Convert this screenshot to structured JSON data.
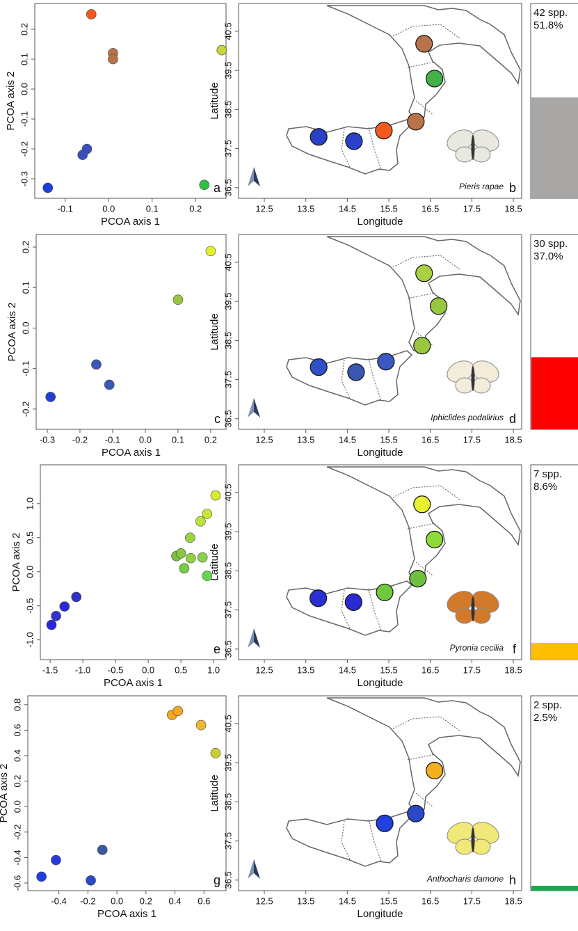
{
  "chart_data": [
    {
      "type": "scatter",
      "label": "a",
      "xlabel": "PCOA axis 1",
      "ylabel": "PCOA axis 2",
      "x": [
        -0.04,
        0.01,
        0.01,
        0.26,
        -0.05,
        -0.06,
        -0.14,
        0.22
      ],
      "y": [
        0.25,
        0.12,
        0.1,
        0.13,
        -0.2,
        -0.22,
        -0.33,
        -0.32
      ],
      "colors": [
        "#f05a1e",
        "#b8734a",
        "#b8734a",
        "#c8d43a",
        "#3a4fc0",
        "#3a4fc0",
        "#1a3fd8",
        "#2ec040"
      ],
      "xlim": [
        -0.17,
        0.27
      ],
      "ylim": [
        -0.365,
        0.286
      ],
      "xticks": [
        -0.1,
        {
          "value": 0,
          "label": "0.0"
        },
        0.1,
        0.2
      ],
      "yticks": [
        -0.3,
        -0.2,
        -0.1,
        {
          "value": 0,
          "label": "0.0"
        },
        0.1,
        0.2
      ]
    },
    {
      "type": "map",
      "label": "b",
      "species": "Pieris rapae",
      "xlabel": "Longitude",
      "ylabel": "Latitude",
      "x": [
        16.35,
        16.6,
        16.15,
        15.38,
        14.66,
        13.81
      ],
      "y": [
        40.18,
        39.29,
        38.19,
        37.96,
        37.69,
        37.8
      ],
      "colors": [
        "#b8734a",
        "#44b048",
        "#b8734a",
        "#f05a1e",
        "#2a40c8",
        "#2a40c8"
      ],
      "xlim": [
        11.88,
        18.7
      ],
      "ylim": [
        36.23,
        41.21
      ],
      "xticks": [
        12.5,
        13.5,
        14.5,
        15.5,
        16.5,
        17.5,
        18.5
      ],
      "yticks": [
        36.5,
        37.5,
        38.5,
        39.5,
        40.5
      ]
    },
    {
      "type": "bar",
      "label": "42 spp.",
      "values": [
        51.8
      ],
      "value_labels": [
        "51.8%"
      ],
      "color": "#a9a6a6",
      "ylim": [
        0,
        100
      ]
    },
    {
      "type": "scatter",
      "label": "c",
      "xlabel": "PCOA axis 1",
      "ylabel": "PCOA axis 2",
      "x": [
        0.2,
        0.1,
        -0.15,
        -0.11,
        -0.29
      ],
      "y": [
        0.19,
        0.07,
        -0.09,
        -0.14,
        -0.17
      ],
      "colors": [
        "#e6ef2a",
        "#9cc43c",
        "#3a58b4",
        "#3a58b4",
        "#2040d0"
      ],
      "xlim": [
        -0.334,
        0.247
      ],
      "ylim": [
        -0.25,
        0.231
      ],
      "xticks": [
        -0.3,
        -0.2,
        -0.1,
        {
          "value": 0,
          "label": "0.0"
        },
        0.1,
        0.2
      ],
      "yticks": [
        -0.2,
        -0.1,
        {
          "value": 0,
          "label": "0.0"
        },
        0.1,
        0.2
      ]
    },
    {
      "type": "map",
      "label": "d",
      "species": "Iphiclides podalirius",
      "xlabel": "Longitude",
      "ylabel": "Latitude",
      "x": [
        16.35,
        16.7,
        16.3,
        15.43,
        14.71,
        13.81
      ],
      "y": [
        40.22,
        39.38,
        38.37,
        37.96,
        37.69,
        37.82
      ],
      "colors": [
        "#a8d040",
        "#98c840",
        "#98c840",
        "#3a58c0",
        "#3a58b0",
        "#3050c8"
      ],
      "xlim": [
        11.88,
        18.7
      ],
      "ylim": [
        36.23,
        41.21
      ],
      "xticks": [
        12.5,
        13.5,
        14.5,
        15.5,
        16.5,
        17.5,
        18.5
      ],
      "yticks": [
        36.5,
        37.5,
        38.5,
        39.5,
        40.5
      ]
    },
    {
      "type": "bar",
      "label": "30 spp.",
      "values": [
        37.0
      ],
      "value_labels": [
        "37.0%"
      ],
      "color": "#ff0000",
      "ylim": [
        0,
        100
      ]
    },
    {
      "type": "scatter",
      "label": "e",
      "xlabel": "PCOA axis 1",
      "ylabel": "PCOA axis 2",
      "x": [
        1.03,
        0.9,
        0.8,
        0.64,
        0.43,
        0.5,
        0.55,
        0.65,
        0.83,
        0.9,
        -1.1,
        -1.28,
        -1.41,
        -1.48
      ],
      "y": [
        1.12,
        0.85,
        0.74,
        0.5,
        0.23,
        0.27,
        0.05,
        0.2,
        0.21,
        -0.06,
        -0.37,
        -0.51,
        -0.65,
        -0.78
      ],
      "colors": [
        "#d7ec2b",
        "#c9e833",
        "#b9e53a",
        "#9bd53e",
        "#7fbf3f",
        "#86c83f",
        "#78cc45",
        "#8fd042",
        "#86d24a",
        "#5fd84a",
        "#2f30c8",
        "#2a2ad6",
        "#3333cc",
        "#2626dc"
      ],
      "xlim": [
        -1.65,
        1.19
      ],
      "ylim": [
        -1.29,
        1.57
      ],
      "xticks": [
        -1.5,
        {
          "value": -1,
          "label": "-1.0"
        },
        -0.5,
        {
          "value": 0,
          "label": "0.0"
        },
        0.5,
        {
          "value": 1,
          "label": "1.0"
        }
      ],
      "yticks": [
        {
          "value": -1,
          "label": "-1.0"
        },
        -0.5,
        {
          "value": 0,
          "label": "0.0"
        },
        0.5,
        {
          "value": 1,
          "label": "1.0"
        }
      ]
    },
    {
      "type": "map",
      "label": "f",
      "species": "Pyronia cecilia",
      "xlabel": "Longitude",
      "ylabel": "Latitude",
      "x": [
        16.3,
        16.6,
        16.2,
        15.4,
        14.65,
        13.8
      ],
      "y": [
        40.2,
        39.3,
        38.3,
        37.95,
        37.7,
        37.8
      ],
      "colors": [
        "#e8f030",
        "#8ed83a",
        "#70c040",
        "#70c840",
        "#2a2ad0",
        "#2a30d0"
      ],
      "xlim": [
        11.88,
        18.7
      ],
      "ylim": [
        36.23,
        41.21
      ],
      "xticks": [
        12.5,
        13.5,
        14.5,
        15.5,
        16.5,
        17.5,
        18.5
      ],
      "yticks": [
        36.5,
        37.5,
        38.5,
        39.5,
        40.5
      ]
    },
    {
      "type": "bar",
      "label": "7 spp.",
      "values": [
        8.6
      ],
      "value_labels": [
        "8.6%"
      ],
      "color": "#ffbf00",
      "ylim": [
        0,
        100
      ]
    },
    {
      "type": "scatter",
      "label": "g",
      "xlabel": "PCOA axis 1",
      "ylabel": "PCOA axis 2",
      "x": [
        0.38,
        0.42,
        0.58,
        0.68,
        -0.1,
        -0.42,
        -0.52,
        -0.18
      ],
      "y": [
        0.72,
        0.75,
        0.64,
        0.42,
        -0.34,
        -0.42,
        -0.55,
        -0.58
      ],
      "colors": [
        "#f5a623",
        "#f5a623",
        "#f0b830",
        "#c8d030",
        "#3a58a0",
        "#2a3ad8",
        "#2040e0",
        "#2a48c8"
      ],
      "xlim": [
        -0.614,
        0.752
      ],
      "ylim": [
        -0.66,
        0.87
      ],
      "xticks": [
        -0.4,
        -0.2,
        {
          "value": 0,
          "label": "0.0"
        },
        0.2,
        0.4,
        0.6
      ],
      "yticks": [
        -0.6,
        -0.4,
        -0.2,
        {
          "value": 0,
          "label": "0.0"
        },
        0.2,
        0.4,
        0.6,
        0.8
      ]
    },
    {
      "type": "map",
      "label": "h",
      "species": "Anthocharis damone",
      "xlabel": "Longitude",
      "ylabel": "Latitude",
      "x": [
        16.6,
        16.15,
        15.4
      ],
      "y": [
        39.3,
        38.2,
        37.95
      ],
      "colors": [
        "#f0b020",
        "#2a48c8",
        "#2040e0"
      ],
      "xlim": [
        11.88,
        18.7
      ],
      "ylim": [
        36.23,
        41.21
      ],
      "xticks": [
        12.5,
        13.5,
        14.5,
        15.5,
        16.5,
        17.5,
        18.5
      ],
      "yticks": [
        36.5,
        37.5,
        38.5,
        39.5,
        40.5
      ]
    },
    {
      "type": "bar",
      "label": "2 spp.",
      "values": [
        2.5
      ],
      "value_labels": [
        "2.5%"
      ],
      "color": "#1aa850",
      "ylim": [
        0,
        100
      ]
    }
  ]
}
